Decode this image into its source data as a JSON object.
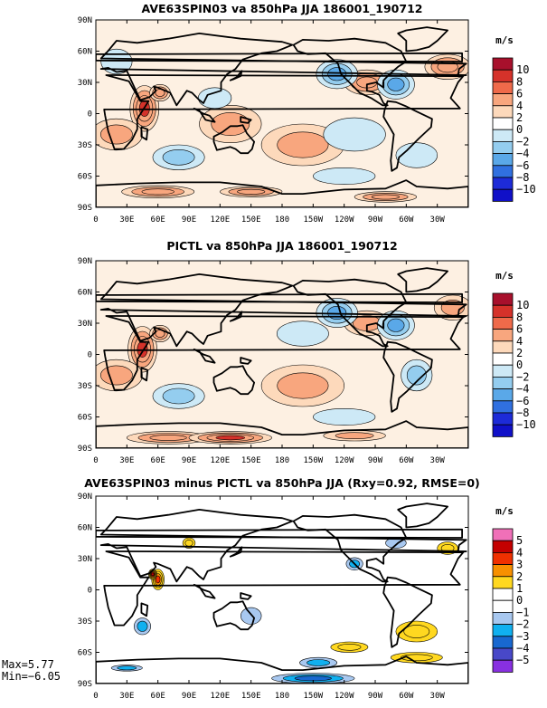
{
  "panels": [
    {
      "title": "AVE63SPIN03 va 850hPa JJA 186001_190712",
      "units": "m/s",
      "levels": [
        "10",
        "8",
        "6",
        "4",
        "2",
        "0",
        "−2",
        "−4",
        "−6",
        "−8",
        "−10"
      ],
      "colors": [
        "#a8102c",
        "#d5322a",
        "#ef6a4a",
        "#f8a67e",
        "#fdd9bb",
        "#ffffff",
        "#cde9f6",
        "#94cdef",
        "#5aa8e8",
        "#3070e0",
        "#1d2bd8",
        "#1010c8"
      ]
    },
    {
      "title": "PICTL va 850hPa JJA 186001_190712",
      "units": "m/s",
      "levels": [
        "10",
        "8",
        "6",
        "4",
        "2",
        "0",
        "−2",
        "−4",
        "−6",
        "−8",
        "−10"
      ],
      "colors": [
        "#a8102c",
        "#d5322a",
        "#ef6a4a",
        "#f8a67e",
        "#fdd9bb",
        "#ffffff",
        "#cde9f6",
        "#94cdef",
        "#5aa8e8",
        "#3070e0",
        "#1d2bd8",
        "#1010c8"
      ]
    },
    {
      "title": "AVE63SPIN03 minus PICTL va 850hPa JJA (Rxy=0.92, RMSE=0)",
      "units": "m/s",
      "levels": [
        "5",
        "4",
        "3",
        "2",
        "1",
        "0",
        "−1",
        "−2",
        "−3",
        "−4",
        "−5"
      ],
      "colors": [
        "#f070b8",
        "#c40000",
        "#f03000",
        "#f89000",
        "#ffd820",
        "#ffffff",
        "#ffffff",
        "#a8c8f0",
        "#10b0f0",
        "#1868d0",
        "#4848c8",
        "#8830e0"
      ]
    }
  ],
  "lat_labels": [
    "90N",
    "60N",
    "30N",
    "0",
    "30S",
    "60S",
    "90S"
  ],
  "lon_labels": [
    "0",
    "30E",
    "60E",
    "90E",
    "120E",
    "150E",
    "180",
    "150W",
    "120W",
    "90W",
    "60W",
    "30W"
  ],
  "stats": {
    "max": "Max=5.77",
    "min": "Min=−6.05"
  },
  "chart_data": [
    {
      "type": "heatmap",
      "title": "AVE63SPIN03 va 850hPa JJA 186001_190712",
      "variable": "va 850hPa JJA",
      "units": "m/s",
      "x_ticks": [
        "0",
        "30E",
        "60E",
        "90E",
        "120E",
        "150E",
        "180",
        "150W",
        "120W",
        "90W",
        "60W",
        "30W"
      ],
      "y_ticks": [
        "90N",
        "60N",
        "30N",
        "0",
        "30S",
        "60S",
        "90S"
      ],
      "colorbar_levels": [
        10,
        8,
        6,
        4,
        2,
        0,
        -2,
        -4,
        -6,
        -8,
        -10
      ],
      "legend": "right"
    },
    {
      "type": "heatmap",
      "title": "PICTL va 850hPa JJA 186001_190712",
      "variable": "va 850hPa JJA",
      "units": "m/s",
      "x_ticks": [
        "0",
        "30E",
        "60E",
        "90E",
        "120E",
        "150E",
        "180",
        "150W",
        "120W",
        "90W",
        "60W",
        "30W"
      ],
      "y_ticks": [
        "90N",
        "60N",
        "30N",
        "0",
        "30S",
        "60S",
        "90S"
      ],
      "colorbar_levels": [
        10,
        8,
        6,
        4,
        2,
        0,
        -2,
        -4,
        -6,
        -8,
        -10
      ],
      "legend": "right"
    },
    {
      "type": "heatmap",
      "title": "AVE63SPIN03 minus PICTL va 850hPa JJA (Rxy=0.92, RMSE=0)",
      "variable": "va 850hPa JJA difference",
      "units": "m/s",
      "x_ticks": [
        "0",
        "30E",
        "60E",
        "90E",
        "120E",
        "150E",
        "180",
        "150W",
        "120W",
        "90W",
        "60W",
        "30W"
      ],
      "y_ticks": [
        "90N",
        "60N",
        "30N",
        "0",
        "30S",
        "60S",
        "90S"
      ],
      "colorbar_levels": [
        5,
        4,
        3,
        2,
        1,
        0,
        -1,
        -2,
        -3,
        -4,
        -5
      ],
      "max": 5.77,
      "min": -6.05,
      "rxy": 0.92,
      "rmse": 0,
      "legend": "right"
    }
  ]
}
